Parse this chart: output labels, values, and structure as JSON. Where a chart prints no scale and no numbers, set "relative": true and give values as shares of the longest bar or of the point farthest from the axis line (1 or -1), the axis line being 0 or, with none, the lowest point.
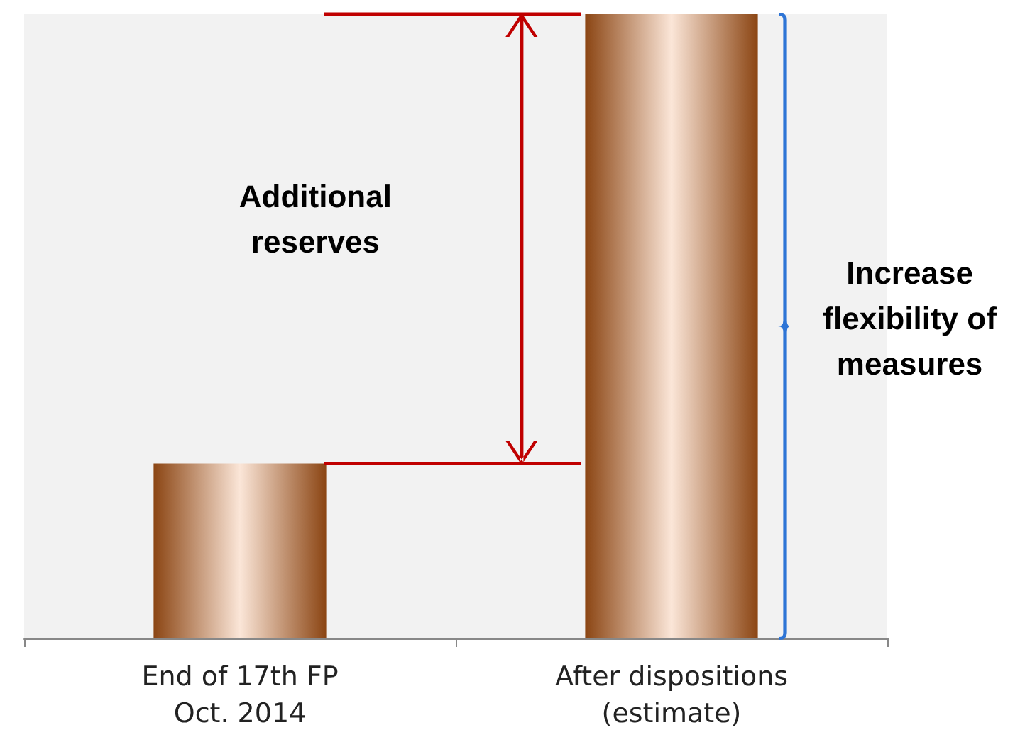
{
  "chart_data": {
    "type": "bar",
    "relative": true,
    "categories": [
      "End of 17th FP\nOct. 2014",
      "After dispositions\n(estimate)"
    ],
    "values": [
      0.28,
      1
    ],
    "color": "#8b4513",
    "annotations": [
      "Additional reserves",
      "Increase flexibility of measures"
    ]
  }
}
